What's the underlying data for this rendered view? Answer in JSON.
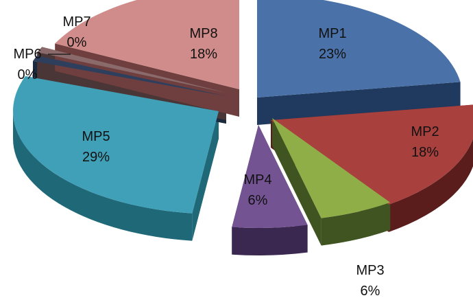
{
  "chart_data": {
    "type": "pie",
    "title": "",
    "style": "3d-exploded",
    "slices": [
      {
        "label": "MP1",
        "value": 23,
        "value_label": "23%",
        "color": "#4a72a8",
        "side_color": "#1f3a5e"
      },
      {
        "label": "MP2",
        "value": 18,
        "value_label": "18%",
        "color": "#a8413e",
        "side_color": "#5a1d1c"
      },
      {
        "label": "MP3",
        "value": 6,
        "value_label": "6%",
        "color": "#8fae48",
        "side_color": "#3f5420"
      },
      {
        "label": "MP4",
        "value": 6,
        "value_label": "6%",
        "color": "#735392",
        "side_color": "#3a2850"
      },
      {
        "label": "MP5",
        "value": 29,
        "value_label": "29%",
        "color": "#3fa0b8",
        "side_color": "#1f6878"
      },
      {
        "label": "MP6",
        "value": 0,
        "value_label": "0%",
        "color": "#2e3f5e",
        "side_color": "#1c2a40"
      },
      {
        "label": "MP7",
        "value": 0,
        "value_label": "0%",
        "color": "#8a6a6a",
        "side_color": "#4a3636"
      },
      {
        "label": "MP8",
        "value": 18,
        "value_label": "18%",
        "color": "#d08c8a",
        "side_color": "#6e3f3e"
      }
    ]
  }
}
